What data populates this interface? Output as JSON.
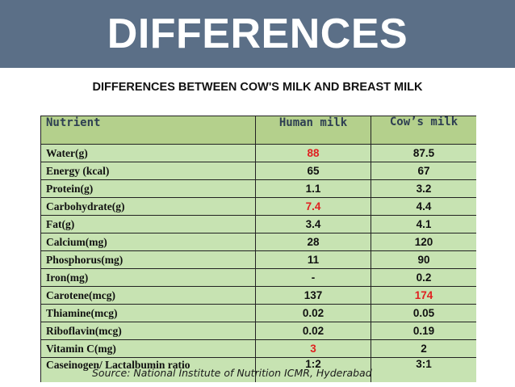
{
  "banner": {
    "title": "DIFFERENCES"
  },
  "subtitle": "DIFFERENCES BETWEEN COW'S MILK AND BREAST MILK",
  "table": {
    "headers": {
      "nutrient": "Nutrient",
      "human": "Human milk",
      "cow": "Cow’s milk"
    },
    "rows": [
      {
        "nutrient": "Water(g)",
        "human": "88",
        "cow": "87.5"
      },
      {
        "nutrient": "Energy (kcal)",
        "human": "65",
        "cow": "67"
      },
      {
        "nutrient": "Protein(g)",
        "human": "1.1",
        "cow": "3.2"
      },
      {
        "nutrient": "Carbohydrate(g)",
        "human": "7.4",
        "cow": "4.4"
      },
      {
        "nutrient": "Fat(g)",
        "human": "3.4",
        "cow": "4.1"
      },
      {
        "nutrient": "Calcium(mg)",
        "human": "28",
        "cow": "120"
      },
      {
        "nutrient": "Phosphorus(mg)",
        "human": "11",
        "cow": "90"
      },
      {
        "nutrient": "Iron(mg)",
        "human": "-",
        "cow": "0.2"
      },
      {
        "nutrient": "Carotene(mcg)",
        "human": "137",
        "cow": "174"
      },
      {
        "nutrient": "Thiamine(mcg)",
        "human": "0.02",
        "cow": "0.05"
      },
      {
        "nutrient": "Riboflavin(mcg)",
        "human": "0.02",
        "cow": "0.19"
      },
      {
        "nutrient": "Vitamin C(mg)",
        "human": "3",
        "cow": "2"
      },
      {
        "nutrient": "Caseinogen/ Lactalbumin ratio",
        "human": "1:2",
        "cow": "3:1"
      }
    ],
    "highlight_color": "#e02020"
  },
  "source": "Source: National Institute of Nutrition ICMR, Hyderabad",
  "colors": {
    "banner": "#5b6f87",
    "table_bg": "#c7e3b2",
    "header_bg": "#b4d08c"
  }
}
